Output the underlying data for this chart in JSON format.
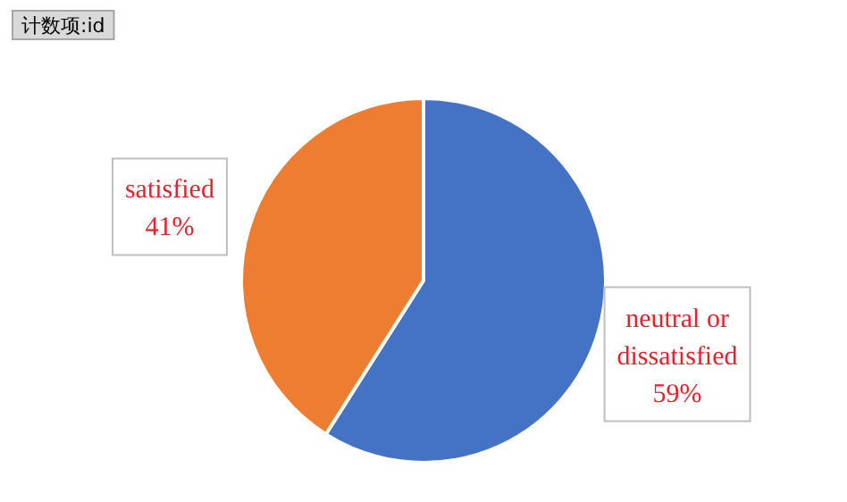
{
  "chart_data": {
    "type": "pie",
    "title": "计数项:id",
    "categories": [
      "neutral or dissatisfied",
      "satisfied"
    ],
    "values": [
      59,
      41
    ],
    "colors": [
      "#4472c4",
      "#ed7d31"
    ],
    "value_labels": [
      "59%",
      "41%"
    ]
  }
}
